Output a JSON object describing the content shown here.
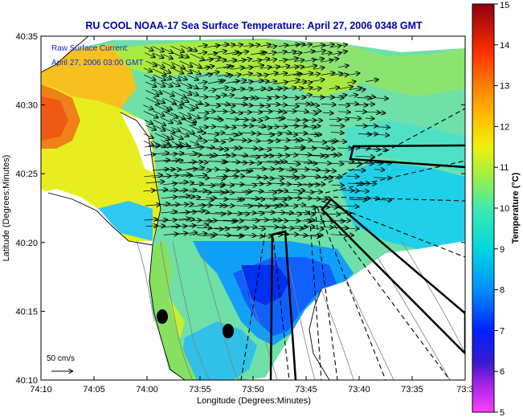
{
  "title": "RU COOL  NOAA-17  Sea Surface Temperature:  April 27, 2006 0348 GMT",
  "legend": {
    "current_label": "Raw Surface Current:",
    "current_time": "April 27, 2006 03:00 GMT",
    "scale_label": "50 cm/s"
  },
  "axes": {
    "xlabel": "Longitude (Degrees:Minutes)",
    "ylabel": "Latitude (Degrees:Minutes)",
    "xticks": [
      "74:10",
      "74:05",
      "74:00",
      "73:55",
      "73:50",
      "73:45",
      "73:40",
      "73:35",
      "73:3"
    ],
    "yticks": [
      "40:35",
      "40:30",
      "40:25",
      "40:20",
      "40:15",
      "40:10"
    ]
  },
  "colorbar": {
    "label": "Temperature (°C)",
    "ticks": [
      "15",
      "14",
      "13",
      "12",
      "11",
      "10",
      "9",
      "8",
      "7",
      "6",
      "5"
    ],
    "min": 5,
    "max": 15
  },
  "colors": {
    "title": "#0000b4",
    "legend_text": "#1030c0",
    "land": "#ffffff",
    "shelf_lines": "#808080"
  }
}
